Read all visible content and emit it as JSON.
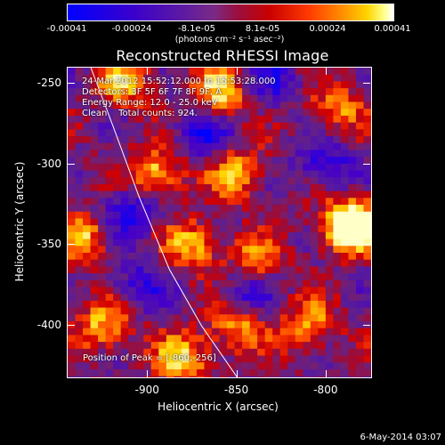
{
  "colorbar": {
    "ticks": [
      "-0.00041",
      "-0.00024",
      "-8.1e-05",
      "8.1e-05",
      "0.00024",
      "0.00041"
    ],
    "tick_values": [
      -0.00041,
      -0.00024,
      -8.1e-05,
      8.1e-05,
      0.00024,
      0.00041
    ],
    "units": "(photons cm⁻² s⁻¹ asec⁻²)"
  },
  "title": "Reconstructed RHESSI Image",
  "annotations": {
    "line1": "24-Mar-2012 15:52:12.000 to 15:53:28.000",
    "line2": "Detectors: 3F 5F 6F 7F 8F 9F, A",
    "line3": "Energy Range: 12.0 - 25.0 keV",
    "line4": "Clean    Total counts: 924.",
    "peak": "Position of Peak = [-860,-256]"
  },
  "footer_date": "6-May-2014 03:07",
  "chart_data": {
    "type": "heatmap",
    "title": "Reconstructed RHESSI Image",
    "xlabel": "Heliocentric X (arcsec)",
    "ylabel": "Heliocentric Y (arcsec)",
    "xlim": [
      -945,
      -775
    ],
    "ylim": [
      -432,
      -240
    ],
    "x_ticks": [
      "-900",
      "-850",
      "-800"
    ],
    "x_tick_values": [
      -900,
      -850,
      -800
    ],
    "y_ticks": [
      "-250",
      "-300",
      "-350",
      "-400"
    ],
    "y_tick_values": [
      -250,
      -300,
      -350,
      -400
    ],
    "peak_position": [
      -860,
      -256
    ],
    "colorbar_range": [
      -0.00041,
      0.00041
    ],
    "limb_curve": [
      [
        -932,
        -240
      ],
      [
        -920,
        -275
      ],
      [
        -905,
        -320
      ],
      [
        -888,
        -365
      ],
      [
        -870,
        -400
      ],
      [
        -850,
        -432
      ]
    ],
    "bright_regions": [
      {
        "x": -860,
        "y": -256,
        "intensity": 1.0
      },
      {
        "x": -913,
        "y": -250,
        "intensity": 0.85
      },
      {
        "x": -895,
        "y": -305,
        "intensity": 0.95
      },
      {
        "x": -850,
        "y": -305,
        "intensity": 0.85
      },
      {
        "x": -795,
        "y": -265,
        "intensity": 0.7
      },
      {
        "x": -790,
        "y": -340,
        "intensity": 0.95
      },
      {
        "x": -782,
        "y": -335,
        "intensity": 0.9
      },
      {
        "x": -875,
        "y": -350,
        "intensity": 0.85
      },
      {
        "x": -935,
        "y": -345,
        "intensity": 0.8
      },
      {
        "x": -840,
        "y": -360,
        "intensity": 0.7
      },
      {
        "x": -925,
        "y": -400,
        "intensity": 0.85
      },
      {
        "x": -850,
        "y": -400,
        "intensity": 0.8
      },
      {
        "x": -810,
        "y": -400,
        "intensity": 0.8
      },
      {
        "x": -880,
        "y": -420,
        "intensity": 0.9
      }
    ],
    "dark_regions": [
      {
        "x": -870,
        "y": -280,
        "intensity": -0.8
      },
      {
        "x": -800,
        "y": -300,
        "intensity": -0.7
      },
      {
        "x": -910,
        "y": -330,
        "intensity": -0.75
      },
      {
        "x": -845,
        "y": -380,
        "intensity": -0.65
      },
      {
        "x": -830,
        "y": -250,
        "intensity": -0.55
      },
      {
        "x": -905,
        "y": -375,
        "intensity": -0.6
      }
    ]
  }
}
